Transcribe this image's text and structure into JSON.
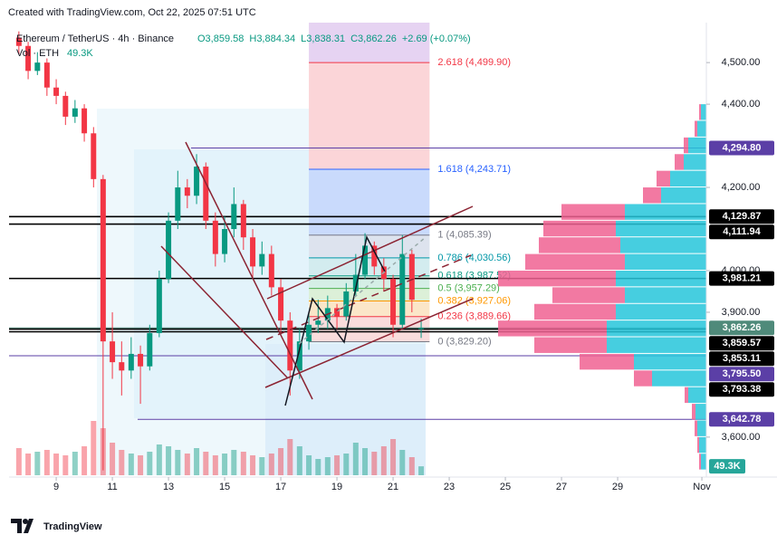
{
  "header": {
    "created": "Created with TradingView.com, Oct 22, 2025 07:51 UTC",
    "symbol": "Ethereum / TetherUS · 4h · Binance",
    "ohlc": [
      "O3,859.58",
      "H3,884.34",
      "L3,838.31",
      "C3,862.26",
      "+2.69 (+0.07%)"
    ],
    "volume_title": "Vol · ETH",
    "volume_value": "49.3K"
  },
  "logo": "TradingView",
  "chart_data": {
    "type": "candlestick",
    "up_color": "#089981",
    "down_color": "#f23645",
    "xlim": [
      7.32,
      32.16
    ],
    "ylim": [
      3504,
      4596
    ],
    "xticks": [
      9,
      11,
      13,
      15,
      17,
      19,
      21,
      23,
      25,
      27,
      29,
      {
        "value": 32,
        "label": "Nov"
      }
    ],
    "yticks": [
      {
        "value": 4500,
        "label": "4,500.00"
      },
      {
        "value": 4400,
        "label": "4,400.00"
      },
      {
        "value": 4200,
        "label": "4,200.00"
      },
      {
        "value": 4000,
        "label": "4,000.00"
      },
      {
        "value": 3900,
        "label": "3,900.00"
      },
      {
        "value": 3600,
        "label": "3,600.00"
      }
    ],
    "candles": {
      "x": [
        7.67,
        8.0,
        8.33,
        8.67,
        9.0,
        9.33,
        9.67,
        10.0,
        10.33,
        10.67,
        11.0,
        11.33,
        11.67,
        12.0,
        12.33,
        12.67,
        13.0,
        13.33,
        13.67,
        14.0,
        14.33,
        14.67,
        15.0,
        15.33,
        15.67,
        16.0,
        16.33,
        16.67,
        17.0,
        17.33,
        17.67,
        18.0,
        18.33,
        18.67,
        19.0,
        19.33,
        19.67,
        20.0,
        20.33,
        20.67,
        21.0,
        21.33,
        21.67,
        22.0
      ],
      "open": [
        4560,
        4540,
        4480,
        4500,
        4440,
        4420,
        4370,
        4390,
        4330,
        4220,
        3830,
        3780,
        3760,
        3800,
        3770,
        3850,
        3980,
        4120,
        4200,
        4180,
        4250,
        4120,
        4040,
        4100,
        4160,
        4080,
        4010,
        4040,
        3960,
        3880,
        3760,
        3830,
        3870,
        3880,
        3910,
        3890,
        3950,
        3990,
        4060,
        4010,
        3980,
        3870,
        4040,
        3859.58
      ],
      "high": [
        4575,
        4550,
        4525,
        4510,
        4460,
        4430,
        4410,
        4400,
        4345,
        4230,
        3900,
        3830,
        3840,
        3820,
        3870,
        4000,
        4140,
        4240,
        4220,
        4280,
        4260,
        4140,
        4130,
        4200,
        4170,
        4100,
        4070,
        4060,
        3980,
        3900,
        3860,
        3900,
        3930,
        3940,
        3920,
        3970,
        4040,
        4090,
        4070,
        4030,
        3990,
        4085.39,
        4050,
        3884.34
      ],
      "low": [
        4520,
        4460,
        4470,
        4420,
        4400,
        4350,
        4355,
        4310,
        4200,
        3520,
        3740,
        3700,
        3740,
        3680,
        3760,
        3840,
        3970,
        4100,
        4150,
        4160,
        4100,
        4010,
        4020,
        4080,
        4050,
        3980,
        3990,
        3940,
        3850,
        3700,
        3740,
        3810,
        3850,
        3860,
        3860,
        3880,
        3940,
        3980,
        3990,
        3950,
        3840,
        3860,
        3900,
        3838.31
      ],
      "close": [
        4540,
        4480,
        4500,
        4440,
        4420,
        4370,
        4390,
        4330,
        4220,
        3830,
        3780,
        3760,
        3800,
        3770,
        3850,
        3980,
        4120,
        4200,
        4180,
        4250,
        4120,
        4040,
        4100,
        4160,
        4080,
        4010,
        4040,
        3960,
        3880,
        3760,
        3830,
        3870,
        3880,
        3910,
        3890,
        3950,
        3990,
        4060,
        4010,
        3980,
        3870,
        4040,
        3930,
        3862.26
      ],
      "volume": [
        150,
        120,
        130,
        140,
        120,
        110,
        130,
        160,
        300,
        260,
        180,
        140,
        120,
        110,
        130,
        170,
        160,
        140,
        120,
        150,
        130,
        110,
        120,
        140,
        130,
        110,
        100,
        120,
        150,
        200,
        160,
        110,
        90,
        100,
        110,
        120,
        180,
        150,
        130,
        160,
        200,
        140,
        100,
        49.3
      ]
    },
    "volume_lim": [
      0,
      500
    ],
    "fib": [
      {
        "value": 4499.9,
        "label": "2.618 (4,499.90)",
        "color": "#f23645",
        "band": "#fbd5d8"
      },
      {
        "value": 4243.71,
        "label": "1.618 (4,243.71)",
        "color": "#2962ff",
        "band": "#c9dafc"
      },
      {
        "value": 4085.39,
        "label": "1 (4,085.39)",
        "color": "#787b86",
        "band": "#dde3ee"
      },
      {
        "value": 4030.56,
        "label": "0.786 (4,030.56)",
        "color": "#0097a7",
        "band": "#d3ecef"
      },
      {
        "value": 3987.52,
        "label": "0.618 (3,987.52)",
        "color": "#089981",
        "band": "#d5efe6"
      },
      {
        "value": 3957.29,
        "label": "0.5 (3,957.29)",
        "color": "#4caf50",
        "band": "#dcf0d8"
      },
      {
        "value": 3927.06,
        "label": "0.382 (3,927.06)",
        "color": "#ff9800",
        "band": "#fbe6c8"
      },
      {
        "value": 3889.66,
        "label": "0.236 (3,889.66)",
        "color": "#f23645",
        "band": "#f9dcdc"
      },
      {
        "value": 3829.2,
        "label": "0 (3,829.20)",
        "color": "#787b86",
        "band": "#f9dcdc"
      }
    ],
    "fib_range": [
      18.0,
      22.3
    ],
    "levels": [
      {
        "value": 4294.8,
        "label": "4,294.80",
        "color": "#5b3fa6",
        "from": 13.8
      },
      {
        "value": 4129.87,
        "label": "4,129.87",
        "color": "#000000",
        "from": 7.32
      },
      {
        "value": 4111.94,
        "label": "4,111.94",
        "color": "#000000",
        "from": 7.32
      },
      {
        "value": 3981.21,
        "label": "3,981.21",
        "color": "#000000",
        "from": 7.32
      },
      {
        "value": 3862.26,
        "label": "3,862.26",
        "color": "#4f8a7a",
        "from": 7.32
      },
      {
        "value": 3859.57,
        "label": "3,859.57",
        "color": "#000000",
        "from": 7.32
      },
      {
        "value": 3853.11,
        "label": "3,853.11",
        "color": "#000000",
        "from": 7.32
      },
      {
        "value": 3795.5,
        "label": "3,795.50",
        "color": "#5b3fa6",
        "from": 7.32
      },
      {
        "value": 3793.38,
        "label": "3,793.38",
        "color": "#000000",
        "from": 32.16
      },
      {
        "value": 3642.78,
        "label": "3,642.78",
        "color": "#5b3fa6",
        "from": 11.9
      }
    ],
    "profile": {
      "bins": [
        3520,
        3560,
        3600,
        3640,
        3680,
        3720,
        3760,
        3800,
        3840,
        3880,
        3920,
        3960,
        4000,
        4040,
        4080,
        4120,
        4160,
        4200,
        4240,
        4280,
        4320,
        4360,
        4400
      ],
      "up": [
        6,
        8,
        10,
        12,
        20,
        60,
        80,
        110,
        110,
        100,
        90,
        100,
        90,
        95,
        100,
        90,
        50,
        40,
        25,
        20,
        10,
        6
      ],
      "down": [
        2,
        2,
        3,
        4,
        4,
        20,
        60,
        80,
        120,
        90,
        80,
        130,
        110,
        90,
        80,
        70,
        20,
        15,
        10,
        5,
        3,
        2
      ],
      "scale": [
        0,
        260
      ],
      "up_color": "#26c6da",
      "down_color": "#f06292"
    }
  }
}
